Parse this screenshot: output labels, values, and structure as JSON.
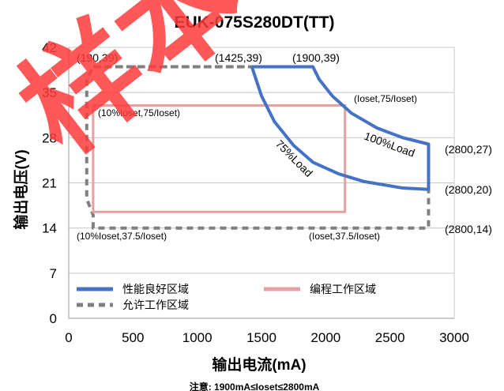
{
  "chart_data": {
    "type": "line",
    "title": "EUK-075S280DT(TT)",
    "xlabel": "输出电流(mA)",
    "ylabel": "输出电压(V)",
    "note": "注意: 1900mA≤Ioset≤2800mA",
    "xlim": [
      0,
      3000
    ],
    "ylim": [
      0,
      42
    ],
    "x_ticks": [
      "0",
      "500",
      "1000",
      "1500",
      "2000",
      "2500",
      "3000"
    ],
    "y_ticks": [
      "0",
      "7",
      "14",
      "21",
      "28",
      "35",
      "42"
    ],
    "grid": "horizontal",
    "legend_position": "bottom-left",
    "series": [
      {
        "name": "性能良好区域",
        "color": "#4472C4",
        "points": [
          [
            1425,
            39
          ],
          [
            1900,
            39
          ],
          [
            1950,
            37
          ],
          [
            2050,
            34.5
          ],
          [
            2200,
            31.8
          ],
          [
            2400,
            29.5
          ],
          [
            2600,
            28
          ],
          [
            2800,
            27
          ],
          [
            2800,
            20
          ],
          [
            2600,
            20.2
          ],
          [
            2300,
            21.2
          ],
          [
            2100,
            22.4
          ],
          [
            1900,
            24.2
          ],
          [
            1750,
            26.8
          ],
          [
            1600,
            30.5
          ],
          [
            1500,
            34.5
          ],
          [
            1425,
            39
          ]
        ]
      },
      {
        "name": "编程工作区域",
        "color": "#E6A0A0",
        "points": [
          [
            190,
            33
          ],
          [
            2150,
            33
          ],
          [
            2150,
            16.5
          ],
          [
            190,
            16.5
          ],
          [
            190,
            33
          ]
        ]
      },
      {
        "name": "允许工作区域",
        "color": "#808080",
        "points": [
          [
            190,
            39
          ],
          [
            1425,
            39
          ],
          [
            1425,
            39
          ],
          [
            190,
            39
          ],
          [
            140,
            37
          ],
          [
            140,
            18.5
          ],
          [
            190,
            16
          ],
          [
            190,
            14
          ],
          [
            2800,
            14
          ],
          [
            2800,
            20
          ]
        ]
      }
    ],
    "annotations": [
      {
        "text": "(190,39)"
      },
      {
        "text": "(1425,39)"
      },
      {
        "text": "(1900,39)"
      },
      {
        "text": "(Ioset,75/Ioset)"
      },
      {
        "text": "(10%Ioset,75/Ioset)"
      },
      {
        "text": "100%Load"
      },
      {
        "text": "75%Load"
      },
      {
        "text": "(2800,27)"
      },
      {
        "text": "(2800,20)"
      },
      {
        "text": "(2800,14)"
      },
      {
        "text": "(10%Ioset,37.5/Ioset)"
      },
      {
        "text": "(Ioset,37.5/Ioset)"
      }
    ]
  },
  "watermark": {
    "text": "样本",
    "color": "#FF3B3B"
  }
}
